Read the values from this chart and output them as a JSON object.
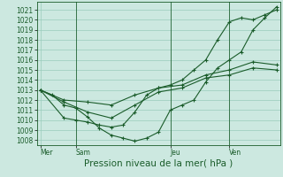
{
  "title": "Pression niveau de la mer( hPa )",
  "background_color": "#cce8e0",
  "grid_color": "#99ccbb",
  "line_color": "#1a5c2a",
  "ylim": [
    1007.5,
    1021.8
  ],
  "yticks": [
    1008,
    1009,
    1010,
    1011,
    1012,
    1013,
    1014,
    1015,
    1016,
    1017,
    1018,
    1019,
    1020,
    1021
  ],
  "xtick_labels": [
    "Mer",
    "Sam",
    "Jeu",
    "Ven"
  ],
  "xtick_positions": [
    0,
    3,
    11,
    16
  ],
  "xlim": [
    -0.3,
    20.3
  ],
  "lines": [
    {
      "x": [
        0,
        1,
        2,
        3,
        4,
        5,
        6,
        7,
        8,
        9,
        10,
        11,
        12,
        13,
        14,
        15,
        16,
        17,
        18,
        19,
        20
      ],
      "y": [
        1013.0,
        1012.5,
        1011.5,
        1011.2,
        1010.3,
        1009.2,
        1008.5,
        1008.2,
        1007.9,
        1008.2,
        1008.8,
        1011.0,
        1011.5,
        1012.0,
        1013.8,
        1015.2,
        1016.0,
        1016.8,
        1019.0,
        1020.2,
        1021.3
      ]
    },
    {
      "x": [
        0,
        2,
        4,
        6,
        8,
        10,
        12,
        14,
        16,
        18,
        20
      ],
      "y": [
        1013.0,
        1011.8,
        1010.8,
        1010.2,
        1011.5,
        1012.8,
        1013.2,
        1014.2,
        1014.5,
        1015.2,
        1015.0
      ]
    },
    {
      "x": [
        0,
        2,
        4,
        6,
        8,
        10,
        12,
        14,
        16,
        18,
        20
      ],
      "y": [
        1013.0,
        1012.0,
        1011.8,
        1011.5,
        1012.5,
        1013.2,
        1013.5,
        1014.5,
        1015.0,
        1015.8,
        1015.5
      ]
    },
    {
      "x": [
        0,
        2,
        3,
        4,
        5,
        6,
        7,
        8,
        9,
        10,
        11,
        12,
        13,
        14,
        15,
        16,
        17,
        18,
        19,
        20
      ],
      "y": [
        1013.0,
        1010.2,
        1010.0,
        1009.8,
        1009.5,
        1009.3,
        1009.5,
        1010.8,
        1012.5,
        1013.2,
        1013.5,
        1014.0,
        1015.0,
        1016.0,
        1018.0,
        1019.8,
        1020.2,
        1020.0,
        1020.5,
        1021.0
      ]
    }
  ],
  "vlines_x": [
    3,
    11,
    16
  ],
  "tick_label_color": "#1a5c2a",
  "title_color": "#1a5c2a",
  "title_fontsize": 7.5,
  "tick_fontsize": 5.5,
  "marker": "+"
}
